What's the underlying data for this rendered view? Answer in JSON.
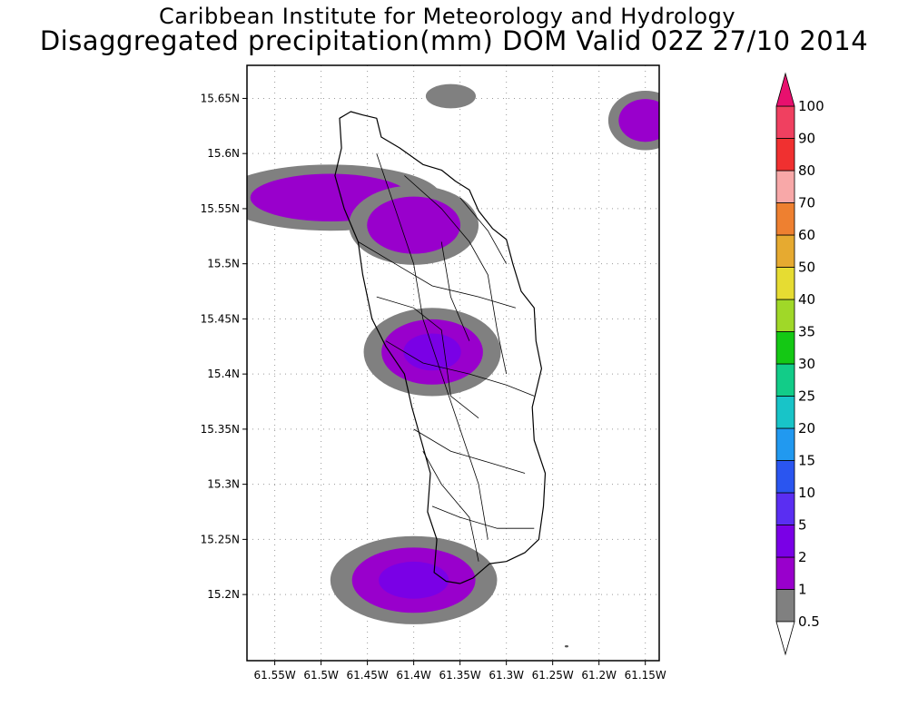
{
  "title": {
    "line1": "Caribbean Institute for Meteorology and Hydrology",
    "line2": "Disaggregated precipitation(mm) DOM Valid 02Z 27/10 2014"
  },
  "map": {
    "lon_range": [
      -61.58,
      -61.135
    ],
    "lat_range": [
      15.14,
      15.68
    ],
    "x_ticks": [
      {
        "lon": -61.55,
        "label": "61.55W"
      },
      {
        "lon": -61.5,
        "label": "61.5W"
      },
      {
        "lon": -61.45,
        "label": "61.45W"
      },
      {
        "lon": -61.4,
        "label": "61.4W"
      },
      {
        "lon": -61.35,
        "label": "61.35W"
      },
      {
        "lon": -61.3,
        "label": "61.3W"
      },
      {
        "lon": -61.25,
        "label": "61.25W"
      },
      {
        "lon": -61.2,
        "label": "61.2W"
      },
      {
        "lon": -61.15,
        "label": "61.15W"
      }
    ],
    "y_ticks": [
      {
        "lat": 15.65,
        "label": "15.65N"
      },
      {
        "lat": 15.6,
        "label": "15.6N"
      },
      {
        "lat": 15.55,
        "label": "15.55N"
      },
      {
        "lat": 15.5,
        "label": "15.5N"
      },
      {
        "lat": 15.45,
        "label": "15.45N"
      },
      {
        "lat": 15.4,
        "label": "15.4N"
      },
      {
        "lat": 15.35,
        "label": "15.35N"
      },
      {
        "lat": 15.3,
        "label": "15.3N"
      },
      {
        "lat": 15.25,
        "label": "15.25N"
      },
      {
        "lat": 15.2,
        "label": "15.2N"
      }
    ],
    "grid": "dotted",
    "island_outline": [
      [
        -61.48,
        15.632
      ],
      [
        -61.468,
        15.638
      ],
      [
        -61.455,
        15.635
      ],
      [
        -61.44,
        15.632
      ],
      [
        -61.435,
        15.615
      ],
      [
        -61.415,
        15.605
      ],
      [
        -61.39,
        15.59
      ],
      [
        -61.37,
        15.585
      ],
      [
        -61.355,
        15.575
      ],
      [
        -61.34,
        15.567
      ],
      [
        -61.33,
        15.548
      ],
      [
        -61.315,
        15.532
      ],
      [
        -61.3,
        15.522
      ],
      [
        -61.293,
        15.5
      ],
      [
        -61.284,
        15.475
      ],
      [
        -61.27,
        15.46
      ],
      [
        -61.268,
        15.43
      ],
      [
        -61.262,
        15.405
      ],
      [
        -61.272,
        15.37
      ],
      [
        -61.27,
        15.34
      ],
      [
        -61.258,
        15.31
      ],
      [
        -61.26,
        15.28
      ],
      [
        -61.265,
        15.25
      ],
      [
        -61.28,
        15.238
      ],
      [
        -61.3,
        15.23
      ],
      [
        -61.318,
        15.228
      ],
      [
        -61.336,
        15.215
      ],
      [
        -61.35,
        15.21
      ],
      [
        -61.365,
        15.212
      ],
      [
        -61.378,
        15.22
      ],
      [
        -61.375,
        15.25
      ],
      [
        -61.385,
        15.275
      ],
      [
        -61.382,
        15.31
      ],
      [
        -61.392,
        15.34
      ],
      [
        -61.402,
        15.37
      ],
      [
        -61.41,
        15.4
      ],
      [
        -61.43,
        15.425
      ],
      [
        -61.445,
        15.45
      ],
      [
        -61.455,
        15.49
      ],
      [
        -61.46,
        15.52
      ],
      [
        -61.475,
        15.55
      ],
      [
        -61.485,
        15.58
      ],
      [
        -61.478,
        15.605
      ],
      [
        -61.48,
        15.632
      ]
    ],
    "interior_lines": [
      [
        [
          -61.44,
          15.6
        ],
        [
          -61.42,
          15.55
        ],
        [
          -61.4,
          15.5
        ],
        [
          -61.39,
          15.45
        ],
        [
          -61.37,
          15.4
        ],
        [
          -61.35,
          15.35
        ],
        [
          -61.33,
          15.3
        ],
        [
          -61.32,
          15.25
        ]
      ],
      [
        [
          -61.46,
          15.52
        ],
        [
          -61.42,
          15.5
        ],
        [
          -61.38,
          15.48
        ],
        [
          -61.33,
          15.47
        ],
        [
          -61.29,
          15.46
        ]
      ],
      [
        [
          -61.43,
          15.43
        ],
        [
          -61.39,
          15.41
        ],
        [
          -61.34,
          15.4
        ],
        [
          -61.3,
          15.39
        ],
        [
          -61.27,
          15.38
        ]
      ],
      [
        [
          -61.4,
          15.35
        ],
        [
          -61.36,
          15.33
        ],
        [
          -61.32,
          15.32
        ],
        [
          -61.28,
          15.31
        ]
      ],
      [
        [
          -61.38,
          15.28
        ],
        [
          -61.35,
          15.27
        ],
        [
          -61.31,
          15.26
        ],
        [
          -61.27,
          15.26
        ]
      ],
      [
        [
          -61.41,
          15.58
        ],
        [
          -61.37,
          15.55
        ],
        [
          -61.34,
          15.52
        ],
        [
          -61.32,
          15.49
        ],
        [
          -61.31,
          15.44
        ],
        [
          -61.3,
          15.4
        ]
      ],
      [
        [
          -61.44,
          15.47
        ],
        [
          -61.4,
          15.46
        ],
        [
          -61.37,
          15.44
        ],
        [
          -61.36,
          15.38
        ],
        [
          -61.33,
          15.36
        ]
      ],
      [
        [
          -61.37,
          15.52
        ],
        [
          -61.36,
          15.47
        ],
        [
          -61.34,
          15.43
        ]
      ],
      [
        [
          -61.39,
          15.33
        ],
        [
          -61.37,
          15.3
        ],
        [
          -61.34,
          15.27
        ],
        [
          -61.33,
          15.23
        ]
      ],
      [
        [
          -61.35,
          15.56
        ],
        [
          -61.32,
          15.53
        ],
        [
          -61.3,
          15.5
        ]
      ]
    ],
    "rain_patches": [
      {
        "center": [
          -61.36,
          15.652
        ],
        "radius": [
          0.027,
          0.011
        ],
        "max_level": "0.5-1"
      },
      {
        "center": [
          -61.15,
          15.63
        ],
        "radius": [
          0.04,
          0.027
        ],
        "max_level": "1-2"
      },
      {
        "center": [
          -61.49,
          15.56
        ],
        "radius": [
          0.12,
          0.03
        ],
        "max_level": "1-2"
      },
      {
        "center": [
          -61.4,
          15.535
        ],
        "radius": [
          0.07,
          0.036
        ],
        "max_level": "1-2"
      },
      {
        "center": [
          -61.38,
          15.42
        ],
        "radius": [
          0.074,
          0.04
        ],
        "max_level": "2-5"
      },
      {
        "center": [
          -61.4,
          15.213
        ],
        "radius": [
          0.09,
          0.04
        ],
        "max_level": "2-5"
      },
      {
        "center": [
          -61.235,
          15.153
        ],
        "radius": [
          0.002,
          0.001
        ],
        "max_level": "tiny"
      }
    ]
  },
  "colorbar": {
    "bins": [
      {
        "label": "0.5",
        "color": "#ffffff"
      },
      {
        "label": "1",
        "color": "#808080"
      },
      {
        "label": "2",
        "color": "#9900cc"
      },
      {
        "label": "5",
        "color": "#7a00e6"
      },
      {
        "label": "10",
        "color": "#5a2ef2"
      },
      {
        "label": "15",
        "color": "#2a55f0"
      },
      {
        "label": "20",
        "color": "#2199f0"
      },
      {
        "label": "25",
        "color": "#18c4c8"
      },
      {
        "label": "30",
        "color": "#12cc88"
      },
      {
        "label": "35",
        "color": "#14c814"
      },
      {
        "label": "40",
        "color": "#a0d828"
      },
      {
        "label": "50",
        "color": "#e6dc32"
      },
      {
        "label": "60",
        "color": "#e6aa30"
      },
      {
        "label": "70",
        "color": "#ee8030"
      },
      {
        "label": "80",
        "color": "#f8a8a8"
      },
      {
        "label": "90",
        "color": "#f03030"
      },
      {
        "label": "100",
        "color": "#f04060"
      }
    ],
    "top_arrow_color": "#e8106e",
    "bottom_arrow_color": "#ffffff"
  }
}
